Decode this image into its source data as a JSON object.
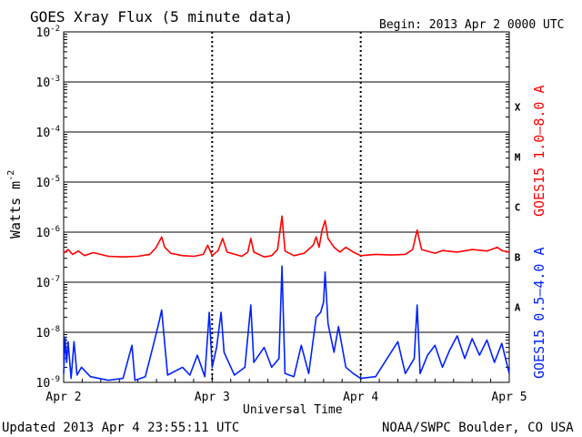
{
  "chart_data": {
    "type": "line",
    "title": "GOES Xray Flux (5 minute data)",
    "begin_label": "Begin:  2013 Apr 2 0000 UTC",
    "ylabel": "Watts m",
    "ylabel_exponent": "-2",
    "xlabel": "Universal Time",
    "yscale": "log",
    "ylim": [
      1e-09,
      0.01
    ],
    "xlim": [
      0,
      3
    ],
    "x_unit": "days since 2013 Apr 2 0000 UTC",
    "grid": true,
    "y_ticks": [
      {
        "base": "10",
        "exp": "-2",
        "value": 0.01
      },
      {
        "base": "10",
        "exp": "-3",
        "value": 0.001
      },
      {
        "base": "10",
        "exp": "-4",
        "value": 0.0001
      },
      {
        "base": "10",
        "exp": "-5",
        "value": 1e-05
      },
      {
        "base": "10",
        "exp": "-6",
        "value": 1e-06
      },
      {
        "base": "10",
        "exp": "-7",
        "value": 1e-07
      },
      {
        "base": "10",
        "exp": "-8",
        "value": 1e-08
      },
      {
        "base": "10",
        "exp": "-9",
        "value": 1e-09
      }
    ],
    "x_ticks": [
      {
        "label": "Apr 2",
        "value": 0
      },
      {
        "label": "Apr 3",
        "value": 1
      },
      {
        "label": "Apr 4",
        "value": 2
      },
      {
        "label": "Apr 5",
        "value": 3
      }
    ],
    "flare_classes": [
      {
        "label": "X",
        "value": 0.000316
      },
      {
        "label": "M",
        "value": 3.16e-05
      },
      {
        "label": "C",
        "value": 3.16e-06
      },
      {
        "label": "B",
        "value": 3.16e-07
      },
      {
        "label": "A",
        "value": 3.16e-08
      }
    ],
    "series": [
      {
        "name": "GOES15 1.0–8.0 A",
        "color": "#ff0000",
        "baseline": 3.2e-07,
        "points": [
          [
            0.0,
            3.8e-07
          ],
          [
            0.03,
            4.5e-07
          ],
          [
            0.06,
            3.6e-07
          ],
          [
            0.1,
            4.2e-07
          ],
          [
            0.14,
            3.4e-07
          ],
          [
            0.2,
            3.9e-07
          ],
          [
            0.3,
            3.3e-07
          ],
          [
            0.4,
            3.2e-07
          ],
          [
            0.5,
            3.3e-07
          ],
          [
            0.58,
            3.6e-07
          ],
          [
            0.62,
            4.8e-07
          ],
          [
            0.66,
            8e-07
          ],
          [
            0.68,
            5e-07
          ],
          [
            0.72,
            3.8e-07
          ],
          [
            0.8,
            3.4e-07
          ],
          [
            0.88,
            3.3e-07
          ],
          [
            0.94,
            3.6e-07
          ],
          [
            0.97,
            5.5e-07
          ],
          [
            1.0,
            3.4e-07
          ],
          [
            1.04,
            4.3e-07
          ],
          [
            1.07,
            7.5e-07
          ],
          [
            1.1,
            4e-07
          ],
          [
            1.2,
            3.3e-07
          ],
          [
            1.24,
            4e-07
          ],
          [
            1.26,
            7.5e-07
          ],
          [
            1.28,
            4e-07
          ],
          [
            1.35,
            3.2e-07
          ],
          [
            1.4,
            3.4e-07
          ],
          [
            1.44,
            4.5e-07
          ],
          [
            1.47,
            2.1e-06
          ],
          [
            1.49,
            4.2e-07
          ],
          [
            1.55,
            3.4e-07
          ],
          [
            1.62,
            3.8e-07
          ],
          [
            1.68,
            5.5e-07
          ],
          [
            1.7,
            8e-07
          ],
          [
            1.72,
            5e-07
          ],
          [
            1.74,
            1.1e-06
          ],
          [
            1.76,
            1.7e-06
          ],
          [
            1.78,
            7.5e-07
          ],
          [
            1.82,
            5e-07
          ],
          [
            1.86,
            4e-07
          ],
          [
            1.9,
            5e-07
          ],
          [
            1.95,
            4e-07
          ],
          [
            2.0,
            3.4e-07
          ],
          [
            2.1,
            3.6e-07
          ],
          [
            2.2,
            3.5e-07
          ],
          [
            2.3,
            3.6e-07
          ],
          [
            2.35,
            4.5e-07
          ],
          [
            2.38,
            1.1e-06
          ],
          [
            2.41,
            4.5e-07
          ],
          [
            2.5,
            3.8e-07
          ],
          [
            2.55,
            4.3e-07
          ],
          [
            2.65,
            4e-07
          ],
          [
            2.75,
            4.5e-07
          ],
          [
            2.85,
            4.2e-07
          ],
          [
            2.92,
            5e-07
          ],
          [
            2.95,
            4.3e-07
          ],
          [
            3.0,
            4e-07
          ]
        ]
      },
      {
        "name": "GOES15 0.5–4.0 A",
        "color": "#0022ff",
        "points": [
          [
            0.0,
            1.5e-09
          ],
          [
            0.01,
            8e-09
          ],
          [
            0.02,
            2.5e-09
          ],
          [
            0.03,
            6.5e-09
          ],
          [
            0.05,
            1.2e-09
          ],
          [
            0.07,
            6.5e-09
          ],
          [
            0.09,
            1.4e-09
          ],
          [
            0.12,
            2e-09
          ],
          [
            0.18,
            1.3e-09
          ],
          [
            0.3,
            1.1e-09
          ],
          [
            0.4,
            1.2e-09
          ],
          [
            0.46,
            5.5e-09
          ],
          [
            0.48,
            1.1e-09
          ],
          [
            0.55,
            1.3e-09
          ],
          [
            0.6,
            5e-09
          ],
          [
            0.64,
            1.5e-08
          ],
          [
            0.66,
            2.8e-08
          ],
          [
            0.68,
            6e-09
          ],
          [
            0.7,
            1.4e-09
          ],
          [
            0.8,
            2e-09
          ],
          [
            0.85,
            1.4e-09
          ],
          [
            0.9,
            3.5e-09
          ],
          [
            0.95,
            1.3e-09
          ],
          [
            0.98,
            2.5e-08
          ],
          [
            1.0,
            2e-09
          ],
          [
            1.03,
            5e-09
          ],
          [
            1.06,
            2.5e-08
          ],
          [
            1.08,
            4e-09
          ],
          [
            1.15,
            1.4e-09
          ],
          [
            1.22,
            2e-09
          ],
          [
            1.26,
            3.5e-08
          ],
          [
            1.28,
            2.5e-09
          ],
          [
            1.35,
            5e-09
          ],
          [
            1.4,
            2e-09
          ],
          [
            1.45,
            3e-09
          ],
          [
            1.47,
            2.1e-07
          ],
          [
            1.49,
            1.5e-09
          ],
          [
            1.55,
            1.3e-09
          ],
          [
            1.6,
            5.5e-09
          ],
          [
            1.65,
            1.5e-09
          ],
          [
            1.7,
            2e-08
          ],
          [
            1.73,
            2.5e-08
          ],
          [
            1.75,
            4e-08
          ],
          [
            1.76,
            1.6e-07
          ],
          [
            1.78,
            1.5e-08
          ],
          [
            1.82,
            4e-09
          ],
          [
            1.85,
            1.3e-08
          ],
          [
            1.9,
            2e-09
          ],
          [
            1.95,
            1.5e-09
          ],
          [
            2.0,
            1.2e-09
          ],
          [
            2.1,
            1.3e-09
          ],
          [
            2.25,
            6.5e-09
          ],
          [
            2.3,
            1.5e-09
          ],
          [
            2.36,
            3e-09
          ],
          [
            2.38,
            3.5e-08
          ],
          [
            2.4,
            1.5e-09
          ],
          [
            2.45,
            3.5e-09
          ],
          [
            2.5,
            5.5e-09
          ],
          [
            2.55,
            2e-09
          ],
          [
            2.6,
            4.5e-09
          ],
          [
            2.65,
            8.5e-09
          ],
          [
            2.7,
            3e-09
          ],
          [
            2.75,
            7.5e-09
          ],
          [
            2.8,
            3.5e-09
          ],
          [
            2.85,
            7e-09
          ],
          [
            2.9,
            2.5e-09
          ],
          [
            2.95,
            6e-09
          ],
          [
            3.0,
            1.5e-09
          ]
        ]
      }
    ]
  },
  "footer": {
    "updated": "Updated 2013 Apr  4 23:55:11 UTC",
    "credit": "NOAA/SWPC Boulder, CO USA"
  },
  "colors": {
    "axis": "#000000",
    "grid": "#000000"
  }
}
